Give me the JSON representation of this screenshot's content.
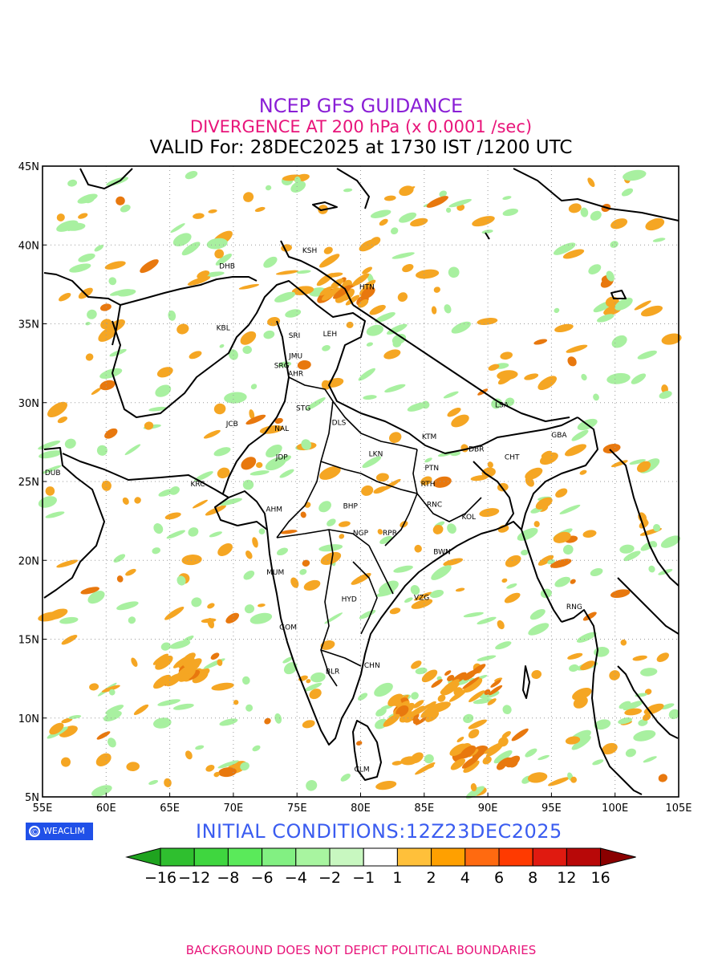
{
  "titles": {
    "line1": "NCEP GFS GUIDANCE",
    "line2": "DIVERGENCE AT 200 hPa (x 0.0001 /sec)",
    "line3": "VALID For: 28DEC2025 at 1730 IST /1200 UTC"
  },
  "axes": {
    "x_ticks": [
      "55E",
      "60E",
      "65E",
      "70E",
      "75E",
      "80E",
      "85E",
      "90E",
      "95E",
      "100E",
      "105E"
    ],
    "y_ticks": [
      "45N",
      "40N",
      "35N",
      "30N",
      "25N",
      "20N",
      "15N",
      "10N",
      "5N"
    ],
    "lon_range": [
      55,
      105
    ],
    "lat_range": [
      5,
      45
    ],
    "grid": "dotted"
  },
  "stations": [
    {
      "code": "KSH",
      "lon": 76.0,
      "lat": 39.5
    },
    {
      "code": "DHB",
      "lon": 69.5,
      "lat": 38.5
    },
    {
      "code": "HTN",
      "lon": 80.5,
      "lat": 37.2
    },
    {
      "code": "KBL",
      "lon": 69.2,
      "lat": 34.6
    },
    {
      "code": "SRI",
      "lon": 74.8,
      "lat": 34.1
    },
    {
      "code": "LEH",
      "lon": 77.6,
      "lat": 34.2
    },
    {
      "code": "JMU",
      "lon": 74.9,
      "lat": 32.8
    },
    {
      "code": "SRG",
      "lon": 73.8,
      "lat": 32.2
    },
    {
      "code": "AHR",
      "lon": 74.9,
      "lat": 31.7
    },
    {
      "code": "LSA",
      "lon": 91.1,
      "lat": 29.7
    },
    {
      "code": "STG",
      "lon": 75.5,
      "lat": 29.5
    },
    {
      "code": "JCB",
      "lon": 69.9,
      "lat": 28.5
    },
    {
      "code": "NAL",
      "lon": 73.8,
      "lat": 28.2
    },
    {
      "code": "DLS",
      "lon": 78.3,
      "lat": 28.6
    },
    {
      "code": "KTM",
      "lon": 85.4,
      "lat": 27.7
    },
    {
      "code": "GBA",
      "lon": 95.6,
      "lat": 27.8
    },
    {
      "code": "DBR",
      "lon": 89.1,
      "lat": 26.9
    },
    {
      "code": "CHT",
      "lon": 91.9,
      "lat": 26.4
    },
    {
      "code": "JDP",
      "lon": 73.8,
      "lat": 26.4
    },
    {
      "code": "LKN",
      "lon": 81.2,
      "lat": 26.6
    },
    {
      "code": "PTN",
      "lon": 85.6,
      "lat": 25.7
    },
    {
      "code": "DUB",
      "lon": 55.8,
      "lat": 25.4
    },
    {
      "code": "RTH",
      "lon": 85.3,
      "lat": 24.7
    },
    {
      "code": "KRC",
      "lon": 67.2,
      "lat": 24.7
    },
    {
      "code": "BHP",
      "lon": 79.2,
      "lat": 23.3
    },
    {
      "code": "RNC",
      "lon": 85.8,
      "lat": 23.4
    },
    {
      "code": "AHM",
      "lon": 73.2,
      "lat": 23.1
    },
    {
      "code": "KOL",
      "lon": 88.5,
      "lat": 22.6
    },
    {
      "code": "NGP",
      "lon": 80.0,
      "lat": 21.6
    },
    {
      "code": "RPR",
      "lon": 82.3,
      "lat": 21.6
    },
    {
      "code": "BWN",
      "lon": 86.4,
      "lat": 20.4
    },
    {
      "code": "MUM",
      "lon": 73.3,
      "lat": 19.1
    },
    {
      "code": "HYD",
      "lon": 79.1,
      "lat": 17.4
    },
    {
      "code": "VZG",
      "lon": 84.8,
      "lat": 17.5
    },
    {
      "code": "RNG",
      "lon": 96.8,
      "lat": 16.9
    },
    {
      "code": "GOM",
      "lon": 74.3,
      "lat": 15.6
    },
    {
      "code": "BLR",
      "lon": 77.8,
      "lat": 12.8
    },
    {
      "code": "CHN",
      "lon": 80.9,
      "lat": 13.2
    },
    {
      "code": "CLM",
      "lon": 80.1,
      "lat": 6.6
    }
  ],
  "legend": {
    "labels": [
      "-16",
      "-12",
      "-8",
      "-6",
      "-4",
      "-2",
      "-1",
      "1",
      "2",
      "4",
      "6",
      "8",
      "12",
      "16"
    ],
    "colors": [
      "#1fa31f",
      "#2fbf2f",
      "#3fd63f",
      "#5aea5a",
      "#82f082",
      "#a8f5a0",
      "#c8f7c0",
      "#ffffff",
      "#ffc03a",
      "#ffa000",
      "#ff6a10",
      "#ff3a00",
      "#e01a10",
      "#b80808",
      "#8a0000"
    ]
  },
  "logo": {
    "text": "WEACLIM",
    "icon": "copyright-circle-icon"
  },
  "initial_conditions": "INITIAL  CONDITIONS:12Z23DEC2025",
  "footer": "BACKGROUND DOES NOT DEPICT POLITICAL BOUNDARIES",
  "shading": {
    "positive_color": "#f5a623",
    "positive_dark_color": "#e8780e",
    "negative_color": "#a8f0a0"
  }
}
